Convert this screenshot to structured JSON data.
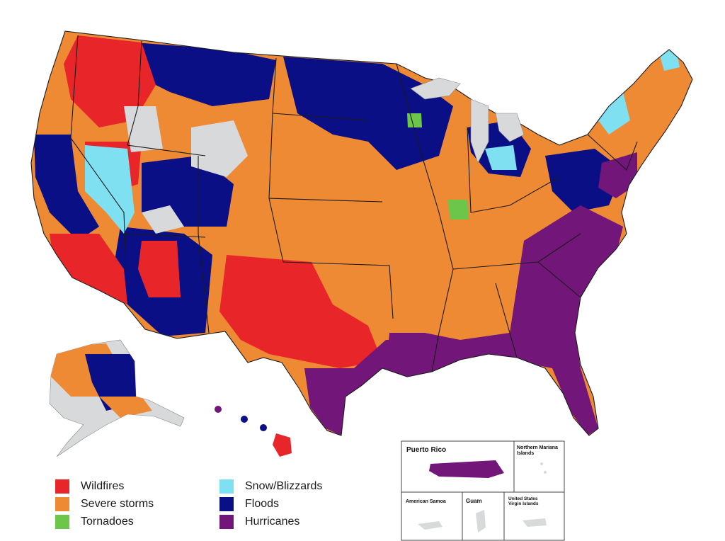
{
  "colors": {
    "wildfires": "#e8262a",
    "severe_storms": "#ee8a34",
    "tornadoes": "#6cc64a",
    "snow_blizzards": "#7fe0f2",
    "floods": "#0a0f86",
    "hurricanes": "#72167a",
    "none": "#d7d9db",
    "border": "#1a1a1a"
  },
  "legend": [
    {
      "key": "wildfires",
      "label": "Wildfires",
      "color": "#e8262a"
    },
    {
      "key": "severe_storms",
      "label": "Severe storms",
      "color": "#ee8a34"
    },
    {
      "key": "tornadoes",
      "label": "Tornadoes",
      "color": "#6cc64a"
    },
    {
      "key": "snow_blizzards",
      "label": "Snow/Blizzards",
      "color": "#7fe0f2"
    },
    {
      "key": "floods",
      "label": "Floods",
      "color": "#0a0f86"
    },
    {
      "key": "hurricanes",
      "label": "Hurricanes",
      "color": "#72167a"
    }
  ],
  "insets": {
    "puerto_rico": "Puerto Rico",
    "northern_mariana_line1": "Northern Mariana",
    "northern_mariana_line2": "Islands",
    "american_samoa": "American Samoa",
    "guam": "Guam",
    "usvi_line1": "United States",
    "usvi_line2": "Virgin Islands"
  }
}
